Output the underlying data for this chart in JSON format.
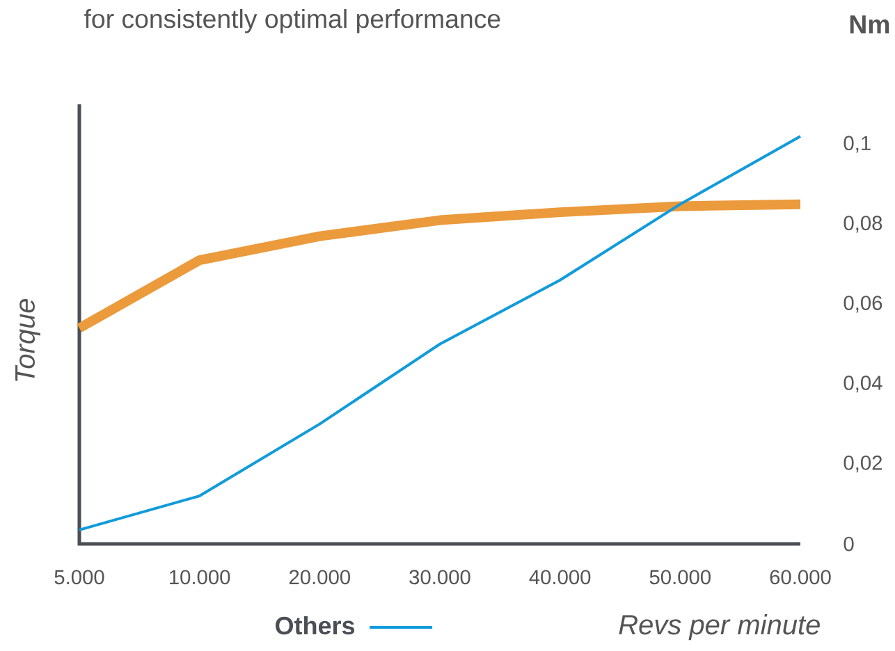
{
  "chart_data": {
    "type": "line",
    "subtitle": "for consistently optimal performance",
    "xlabel": "Revs per minute",
    "ylabel": "Torque",
    "annotations": [
      "Nm"
    ],
    "categories": [
      "5.000",
      "10.000",
      "20.000",
      "30.000",
      "40.000",
      "50.000",
      "60.000"
    ],
    "ylim": [
      0,
      0.11
    ],
    "yticks": [
      {
        "value": 0,
        "label": "0"
      },
      {
        "value": 0.02,
        "label": "0,02"
      },
      {
        "value": 0.04,
        "label": "0,04"
      },
      {
        "value": 0.06,
        "label": "0,06"
      },
      {
        "value": 0.08,
        "label": "0,08"
      },
      {
        "value": 0.1,
        "label": "0,1"
      }
    ],
    "legend": "bottom",
    "series": [
      {
        "color": "#eb9a3c",
        "values": [
          0.054,
          0.071,
          0.077,
          0.081,
          0.083,
          0.0845,
          0.085
        ]
      },
      {
        "name": "Others",
        "color": "#119bdb",
        "values": [
          0.0035,
          0.012,
          0.03,
          0.05,
          0.066,
          0.085,
          0.102
        ]
      }
    ]
  }
}
